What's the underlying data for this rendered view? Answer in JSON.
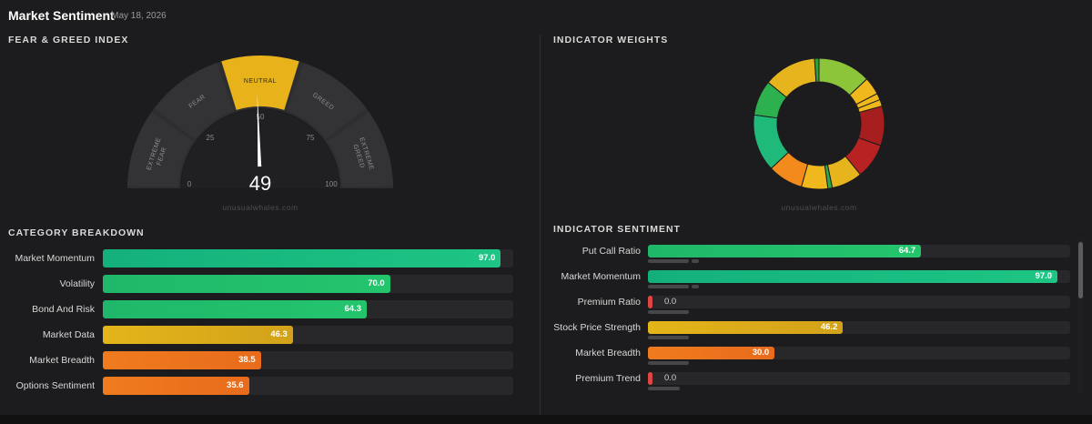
{
  "header": {
    "title": "Market Sentiment",
    "date": "- May 18, 2026"
  },
  "fear_greed": {
    "section_title": "FEAR & GREED INDEX",
    "value": 49,
    "value_text": "49",
    "zones": [
      "EXTREME FEAR",
      "FEAR",
      "NEUTRAL",
      "GREED",
      "EXTREME GREED"
    ],
    "active_zone": "NEUTRAL",
    "ticks": [
      "0",
      "25",
      "50",
      "75",
      "100"
    ],
    "watermark": "unusualwhales.com"
  },
  "category_breakdown": {
    "section_title": "CATEGORY BREAKDOWN",
    "items": [
      {
        "label": "Market Momentum",
        "value": 97.0,
        "value_text": "97.0",
        "color": "teal"
      },
      {
        "label": "Volatility",
        "value": 70.0,
        "value_text": "70.0",
        "color": "green"
      },
      {
        "label": "Bond And Risk",
        "value": 64.3,
        "value_text": "64.3",
        "color": "green"
      },
      {
        "label": "Market Data",
        "value": 46.3,
        "value_text": "46.3",
        "color": "yellow"
      },
      {
        "label": "Market Breadth",
        "value": 38.5,
        "value_text": "38.5",
        "color": "orange"
      },
      {
        "label": "Options Sentiment",
        "value": 35.6,
        "value_text": "35.6",
        "color": "orange"
      }
    ]
  },
  "indicator_weights": {
    "section_title": "INDICATOR WEIGHTS",
    "watermark": "unusualwhales.com",
    "segment_colors": [
      "#8cc43a",
      "#f0b81c",
      "#f0b81c",
      "#f0b81c",
      "#a61e1e",
      "#b82222",
      "#e6b41c",
      "#2ea84e",
      "#f0b81c",
      "#f28a1c",
      "#1fba7a",
      "#2db04e",
      "#e6b41c",
      "#2e9e3e"
    ],
    "segment_weights": [
      12,
      4,
      1.5,
      1.5,
      9,
      8,
      7,
      1,
      6,
      8,
      13,
      8,
      12,
      1
    ]
  },
  "indicator_sentiment": {
    "section_title": "INDICATOR SENTIMENT",
    "items": [
      {
        "label": "Put Call Ratio",
        "value": 64.7,
        "value_text": "64.7",
        "color": "green"
      },
      {
        "label": "Market Momentum",
        "value": 97.0,
        "value_text": "97.0",
        "color": "teal"
      },
      {
        "label": "Premium Ratio",
        "value": 0.0,
        "value_text": "0.0",
        "color": "red"
      },
      {
        "label": "Stock Price Strength",
        "value": 46.2,
        "value_text": "46.2",
        "color": "yellow"
      },
      {
        "label": "Market Breadth",
        "value": 30.0,
        "value_text": "30.0",
        "color": "orange"
      },
      {
        "label": "Premium Trend",
        "value": 0.0,
        "value_text": "0.0",
        "color": "red"
      }
    ]
  }
}
